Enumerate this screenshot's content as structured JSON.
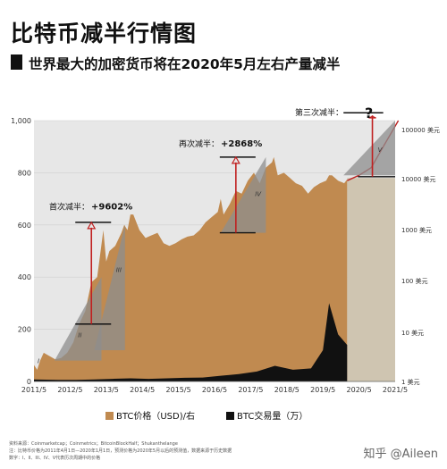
{
  "header": {
    "title": "比特币减半行情图",
    "subtitle": "世界最大的加密货币将在2020年5月左右产量减半"
  },
  "footer": {
    "source_line": "资料来源：Coinmarketcap；Coinmetrics；BitcoinBlockHalf；Shukanthelange",
    "note_line": "注：比特币价格为2011年4月1日—2020年1月1日，预测价格为2020年5月以后的预测值，数据来源于历史数据",
    "note_line2": "数字：I、II、III、IV、V代表历次周期中的价格"
  },
  "watermark": "知乎 @Aileen",
  "chart_data": {
    "type": "area",
    "title": "",
    "x_ticks": [
      "2011/5",
      "2012/5",
      "2013/5",
      "2014/5",
      "2015/5",
      "2016/5",
      "2017/5",
      "2018/5",
      "2019/5",
      "2020/5",
      "2021/5"
    ],
    "y_left_ticks": [
      "0",
      "200",
      "400",
      "600",
      "800",
      "1,000"
    ],
    "y_left_range": [
      0,
      1000
    ],
    "y_right_ticks": [
      "1 美元",
      "10 美元",
      "100 美元",
      "1000 美元",
      "10000 美元",
      "100000 美元"
    ],
    "y_right_scale": "log",
    "legend": {
      "placement": "bottom",
      "items": [
        {
          "label": "BTC价格（USD)/右",
          "color": "#c08a50"
        },
        {
          "label": "BTC交易量（万）",
          "color": "#111111"
        }
      ]
    },
    "annotations": {
      "halving1": {
        "label": "首次减半：",
        "value": "+9602%",
        "roman": "III",
        "roman_small": "II"
      },
      "halving2": {
        "label": "再次减半：",
        "value": "+2868%",
        "roman": "IV"
      },
      "halving3": {
        "label": "第三次减半：",
        "value": "?",
        "roman": "V"
      },
      "start_label": "I"
    },
    "series": [
      {
        "name": "BTC价格（USD)/右",
        "color": "#c08a50",
        "x": [
          2011.33,
          2011.42,
          2011.5,
          2011.6,
          2011.75,
          2011.92,
          2012.08,
          2012.25,
          2012.42,
          2012.58,
          2012.75,
          2012.92,
          2013.08,
          2013.25,
          2013.33,
          2013.42,
          2013.58,
          2013.75,
          2013.83,
          2013.92,
          2014.0,
          2014.08,
          2014.25,
          2014.42,
          2014.58,
          2014.75,
          2014.92,
          2015.08,
          2015.25,
          2015.42,
          2015.58,
          2015.75,
          2015.92,
          2016.08,
          2016.25,
          2016.42,
          2016.5,
          2016.58,
          2016.75,
          2016.92,
          2017.08,
          2017.25,
          2017.42,
          2017.58,
          2017.75,
          2017.92,
          2017.97,
          2018.08,
          2018.25,
          2018.42,
          2018.58,
          2018.75,
          2018.92,
          2019.08,
          2019.25,
          2019.42,
          2019.5,
          2019.58,
          2019.75,
          2019.92,
          2020.0
        ],
        "values": [
          63,
          45,
          80,
          110,
          98,
          85,
          90,
          110,
          150,
          220,
          270,
          380,
          400,
          580,
          460,
          500,
          520,
          570,
          600,
          580,
          640,
          640,
          580,
          550,
          560,
          570,
          530,
          520,
          530,
          545,
          555,
          560,
          580,
          610,
          630,
          650,
          700,
          640,
          680,
          730,
          720,
          770,
          800,
          760,
          820,
          840,
          860,
          790,
          800,
          780,
          760,
          750,
          720,
          745,
          760,
          770,
          790,
          790,
          770,
          760,
          775
        ]
      },
      {
        "name": "BTC交易量（万）",
        "color": "#111111",
        "x": [
          2011.33,
          2012.0,
          2012.5,
          2013.0,
          2013.5,
          2014.0,
          2014.5,
          2015.0,
          2015.5,
          2016.0,
          2016.5,
          2017.0,
          2017.5,
          2018.0,
          2018.5,
          2019.0,
          2019.33,
          2019.5,
          2019.75,
          2020.0
        ],
        "values": [
          8,
          6,
          6,
          8,
          10,
          12,
          10,
          12,
          14,
          15,
          22,
          28,
          38,
          60,
          45,
          50,
          120,
          300,
          180,
          140
        ]
      }
    ],
    "forecast": {
      "x": [
        2020.0,
        2020.33,
        2020.67,
        2021.0,
        2021.42
      ],
      "values": [
        770,
        790,
        820,
        900,
        1000
      ]
    }
  }
}
